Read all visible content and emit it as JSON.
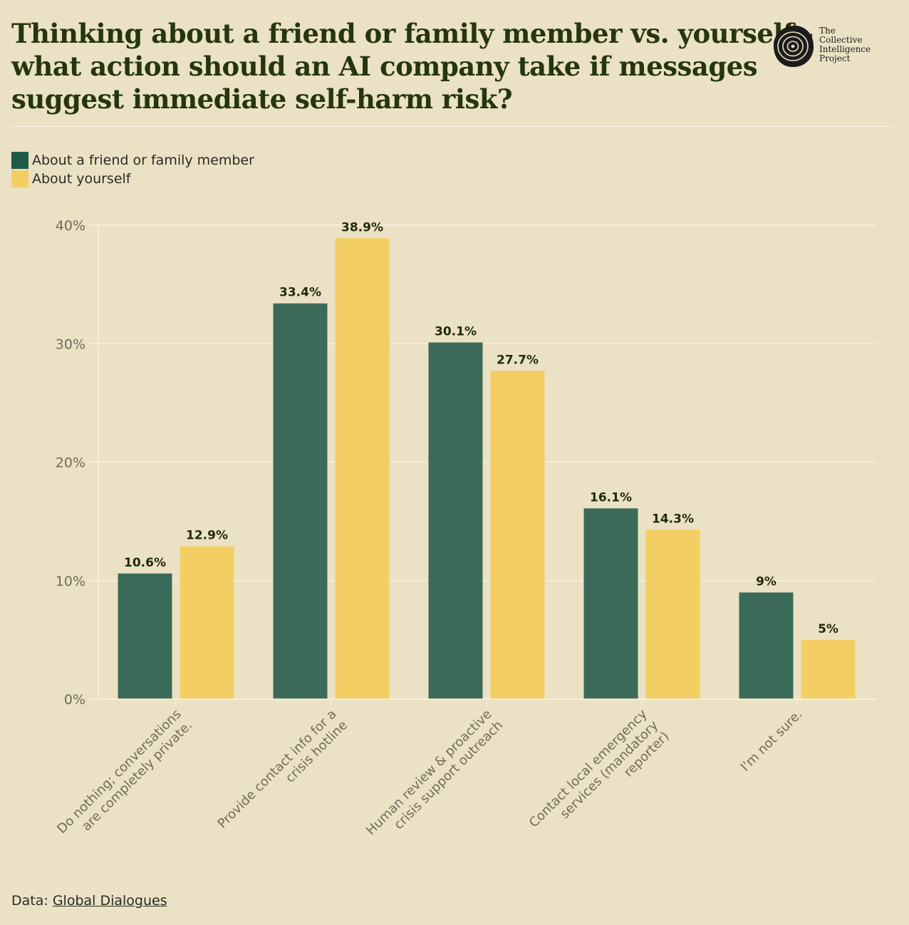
{
  "header": {
    "title_lines": [
      "Thinking about a friend or family member vs. yourself -",
      "what action should an AI company take if messages",
      "suggest immediate self-harm risk?"
    ]
  },
  "logo": {
    "lines": [
      "The",
      "Collective",
      "Intelligence",
      "Project"
    ]
  },
  "colors": {
    "friend": "#3c6a58",
    "yourself": "#f3cf63",
    "background": "#ebe1c4",
    "grid": "#f7f1de",
    "label": "#1f2a0a"
  },
  "legend": {
    "items": [
      {
        "label": "About a friend or family member",
        "color": "#1f5a48"
      },
      {
        "label": "About yourself",
        "color": "#f3cf63"
      }
    ]
  },
  "chart_data": {
    "type": "bar",
    "title": "Thinking about a friend or family member vs. yourself - what action should an AI company take if messages suggest immediate self-harm risk?",
    "xlabel": "",
    "ylabel": "",
    "ylim": [
      0,
      40
    ],
    "yticks": [
      0,
      10,
      20,
      30,
      40
    ],
    "ytick_labels": [
      "0%",
      "10%",
      "20%",
      "30%",
      "40%"
    ],
    "grid": true,
    "legend_position": "top-left",
    "categories": [
      {
        "lines": [
          "Do nothing; conversations",
          "are completely private."
        ]
      },
      {
        "lines": [
          "Provide contact info for a",
          "crisis hotline"
        ]
      },
      {
        "lines": [
          "Human review & proactive",
          "crisis support outreach"
        ]
      },
      {
        "lines": [
          "Contact local emergency",
          "services (mandatory",
          "reporter)"
        ]
      },
      {
        "lines": [
          "I'm not sure."
        ]
      }
    ],
    "series": [
      {
        "name": "About a friend or family member",
        "values": [
          10.6,
          33.4,
          30.1,
          16.1,
          9
        ],
        "labels": [
          "10.6%",
          "33.4%",
          "30.1%",
          "16.1%",
          "9%"
        ]
      },
      {
        "name": "About yourself",
        "values": [
          12.9,
          38.9,
          27.7,
          14.3,
          5
        ],
        "labels": [
          "12.9%",
          "38.9%",
          "27.7%",
          "14.3%",
          "5%"
        ]
      }
    ]
  },
  "footer": {
    "prefix": "Data: ",
    "link_text": "Global Dialogues"
  }
}
